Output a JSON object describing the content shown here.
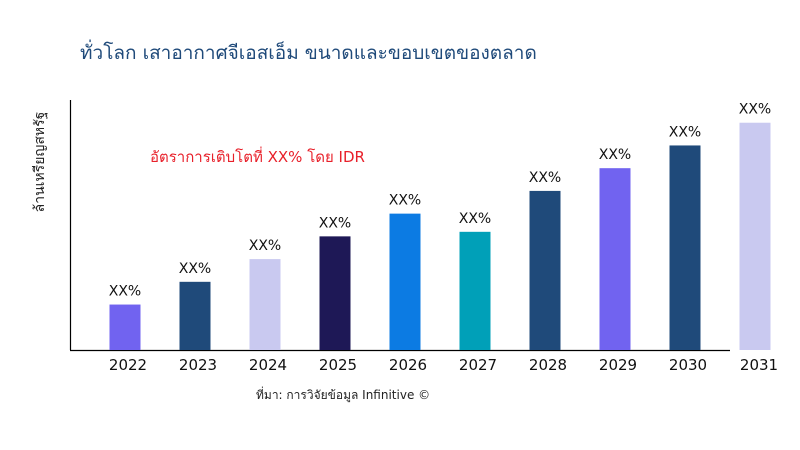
{
  "chart_data": {
    "type": "bar",
    "title": "ทั่วโลก เสาอากาศจีเอสเอ็ม ขนาดและขอบเขตของตลาด",
    "ylabel": "ล้านเหรียญสหรัฐ",
    "xlabel": "",
    "annotation": "อัตราการเติบโตที่ XX% โดย IDR",
    "source": "ที่มา: การวิจัยข้อมูล Infinitive ©",
    "categories": [
      "2022",
      "2023",
      "2024",
      "2025",
      "2026",
      "2027",
      "2028",
      "2029",
      "2030",
      "2031"
    ],
    "values": [
      20,
      30,
      40,
      50,
      60,
      52,
      70,
      80,
      90,
      100
    ],
    "data_labels": [
      "XX%",
      "XX%",
      "XX%",
      "XX%",
      "XX%",
      "XX%",
      "XX%",
      "XX%",
      "XX%",
      "XX%"
    ],
    "colors": [
      "#7163f0",
      "#1f4a7a",
      "#c9c9f0",
      "#1e1856",
      "#0c7be3",
      "#00a0b8",
      "#1f4a7a",
      "#7163f0",
      "#1f4a7a",
      "#c9c9f0"
    ],
    "ylim": [
      0,
      110
    ],
    "y_ticks_shown": false,
    "grid": false,
    "legend": "none"
  }
}
